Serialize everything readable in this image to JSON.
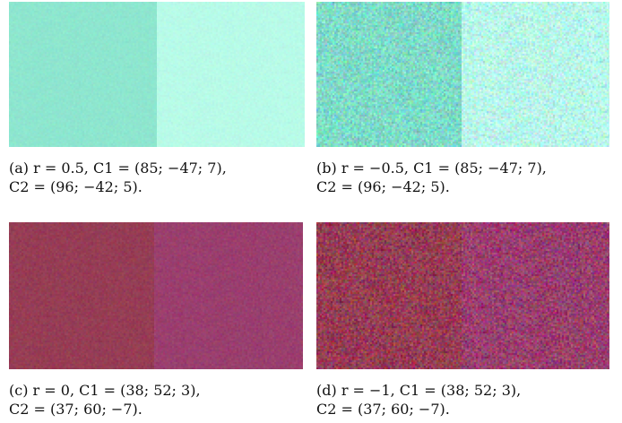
{
  "panels": [
    {
      "id": "a",
      "caption_line1": "(a) r = 0.5, C1 = (85; −47; 7),",
      "caption_line2": "C2 = (96; −42; 5).",
      "left_color": "#8ee6cf",
      "right_color": "#b8fbe8",
      "noise": 6
    },
    {
      "id": "b",
      "caption_line1": "(b) r = −0.5, C1 = (85; −47; 7),",
      "caption_line2": "C2 = (96; −42; 5).",
      "left_color": "#7fdcc8",
      "right_color": "#b8fbeb",
      "noise": 30
    },
    {
      "id": "c",
      "caption_line1": "(c) r = 0, C1 = (38; 52; 3),",
      "caption_line2": "C2 = (37; 60; −7).",
      "left_color": "#963d55",
      "right_color": "#9a3f6e",
      "noise": 10
    },
    {
      "id": "d",
      "caption_line1": "(d) r = −1, C1 = (38; 52; 3),",
      "caption_line2": "C2 = (37; 60; −7).",
      "left_color": "#963d55",
      "right_color": "#9a3f6e",
      "noise": 32
    }
  ]
}
